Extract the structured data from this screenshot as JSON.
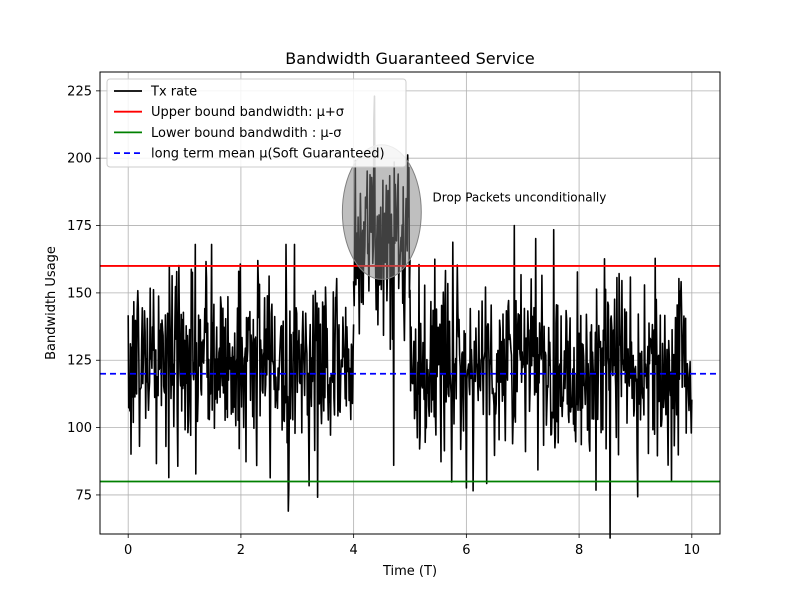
{
  "chart_data": {
    "type": "line",
    "title": "Bandwidth Guaranteed Service",
    "xlabel": "Time (T)",
    "ylabel": "Bandwidth Usage",
    "xlim": [
      -0.5,
      10.5
    ],
    "ylim": [
      60.5,
      232
    ],
    "x_ticks": [
      0,
      2,
      4,
      6,
      8,
      10
    ],
    "x_tick_labels": [
      "0",
      "2",
      "4",
      "6",
      "8",
      "10"
    ],
    "y_ticks": [
      75,
      100,
      125,
      150,
      175,
      200,
      225
    ],
    "y_tick_labels": [
      "75",
      "100",
      "125",
      "150",
      "175",
      "200",
      "225"
    ],
    "grid": true,
    "legend_position": "top-left",
    "series": [
      {
        "name": "Tx rate",
        "kind": "noisy_line",
        "color": "#000000",
        "line_style": "solid",
        "segments": [
          {
            "x_start": 0,
            "x_end": 4,
            "mean": 125,
            "spread": 24,
            "min": 69,
            "max": 168
          },
          {
            "x_start": 4,
            "x_end": 5,
            "mean": 170,
            "spread": 22,
            "min": 86,
            "max": 223
          },
          {
            "x_start": 5,
            "x_end": 10,
            "mean": 123,
            "spread": 24,
            "min": 59,
            "max": 175
          }
        ]
      },
      {
        "name": "Upper bound bandwidth: μ+σ",
        "kind": "hline",
        "y": 160,
        "color": "#ff0000",
        "line_style": "solid"
      },
      {
        "name": "Lower bound bandwdith : μ-σ",
        "kind": "hline",
        "y": 80,
        "color": "#008000",
        "line_style": "solid"
      },
      {
        "name": "long term mean μ(Soft Guaranteed)",
        "kind": "hline",
        "y": 120,
        "color": "#0000ff",
        "line_style": "dashed"
      }
    ],
    "highlight_ellipse": {
      "center_x": 4.5,
      "center_y": 180,
      "radius_x": 0.7,
      "radius_y": 25,
      "color": "#808080"
    },
    "annotations": [
      {
        "text": "Drop Packets unconditionally",
        "x": 5.4,
        "y": 184
      }
    ]
  }
}
